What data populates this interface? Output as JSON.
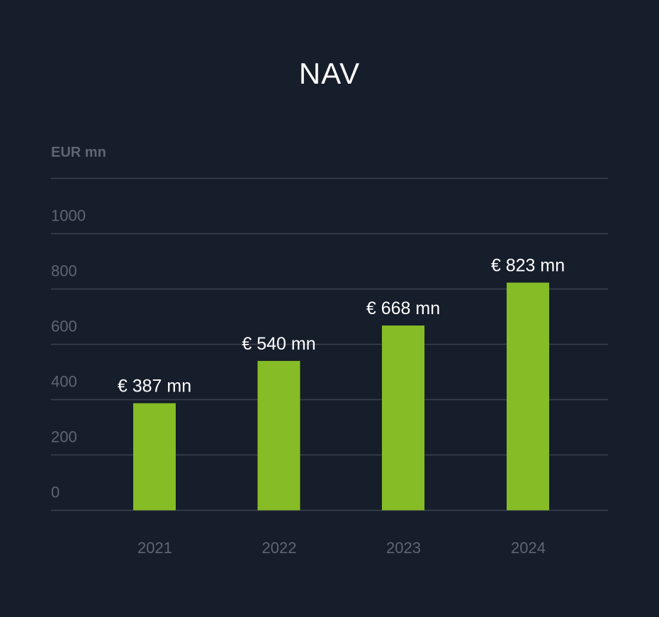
{
  "chart_data": {
    "type": "bar",
    "title": "NAV",
    "ylabel": "EUR mn",
    "xlabel": "",
    "categories": [
      "2021",
      "2022",
      "2023",
      "2024"
    ],
    "values": [
      387,
      540,
      668,
      823
    ],
    "data_labels": [
      "€ 387 mn",
      "€ 540 mn",
      "€ 668 mn",
      "€ 823 mn"
    ],
    "yticks": [
      0,
      200,
      400,
      600,
      800,
      1000
    ],
    "ylim": [
      0,
      1200
    ],
    "grid": true,
    "legend": "none"
  },
  "colors": {
    "background": "#161d2b",
    "bar": "#86bc25",
    "grid": "#3a414f",
    "tick_text": "#5f6572",
    "title_text": "#ffffff",
    "label_text": "#ffffff"
  }
}
